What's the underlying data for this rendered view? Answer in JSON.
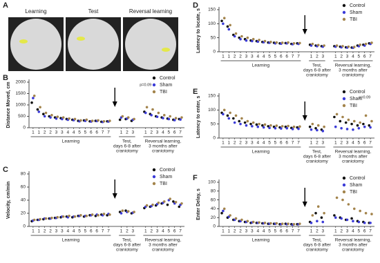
{
  "panel_labels": [
    "A",
    "B",
    "C",
    "D",
    "E",
    "F"
  ],
  "arena_titles": [
    "Learning",
    "Test",
    "Reversal learning"
  ],
  "chart_data": [
    {
      "type": "scatter",
      "y_label": "Distance Moved, cm",
      "ylim": [
        0,
        2000
      ],
      "yticks": [
        0,
        500,
        1000,
        1500,
        2000
      ],
      "annotations": [
        "p=0.09"
      ],
      "groups": [
        {
          "lines": [
            "Learning"
          ],
          "categories": [
            "1",
            "1",
            "2",
            "2",
            "3",
            "3",
            "4",
            "4",
            "5",
            "5",
            "6",
            "6",
            "7",
            "7"
          ]
        },
        {
          "lines": [
            "Test,",
            "days 6-8 after",
            "craniotomy"
          ],
          "categories": [
            "1",
            "2",
            "3"
          ]
        },
        {
          "lines": [
            "Reversal learning,",
            "3 months after",
            "craniotomy"
          ],
          "categories": [
            "1",
            "2",
            "3",
            "4",
            "5",
            "6",
            "7"
          ]
        }
      ],
      "series": [
        {
          "name": "Control",
          "color": "#111111",
          "values": [
            1100,
            800,
            600,
            500,
            450,
            420,
            380,
            350,
            300,
            320,
            280,
            300,
            260,
            280,
            350,
            380,
            300,
            700,
            600,
            500,
            450,
            400,
            350,
            380
          ]
        },
        {
          "name": "Sham",
          "color": "#3b3bd8",
          "values": [
            1300,
            700,
            500,
            450,
            400,
            380,
            350,
            330,
            280,
            300,
            270,
            290,
            250,
            270,
            450,
            400,
            350,
            650,
            550,
            480,
            420,
            380,
            330,
            360
          ]
        },
        {
          "name": "TBI",
          "color": "#a3844c",
          "values": [
            1400,
            900,
            650,
            550,
            480,
            450,
            400,
            380,
            320,
            350,
            300,
            320,
            280,
            300,
            500,
            450,
            380,
            900,
            800,
            650,
            550,
            500,
            420,
            450
          ]
        }
      ]
    },
    {
      "type": "scatter",
      "y_label": "Velocity, cm/min",
      "ylim": [
        0,
        80
      ],
      "yticks": [
        0,
        20,
        40,
        60,
        80
      ],
      "groups": [
        {
          "lines": [
            "Learning"
          ],
          "categories": [
            "1",
            "1",
            "2",
            "2",
            "3",
            "3",
            "4",
            "4",
            "5",
            "5",
            "6",
            "6",
            "7",
            "7"
          ]
        },
        {
          "lines": [
            "Test,",
            "days 6-8 after",
            "craniotomy"
          ],
          "categories": [
            "1",
            "2",
            "3"
          ]
        },
        {
          "lines": [
            "Reversal learning,",
            "3 months after",
            "craniotomy"
          ],
          "categories": [
            "1",
            "2",
            "3",
            "4",
            "5",
            "6",
            "7"
          ]
        }
      ],
      "series": [
        {
          "name": "Control",
          "color": "#111111",
          "values": [
            8,
            10,
            11,
            12,
            13,
            14,
            15,
            14,
            16,
            15,
            17,
            16,
            18,
            17,
            22,
            24,
            20,
            28,
            30,
            32,
            35,
            33,
            38,
            30
          ]
        },
        {
          "name": "Sham",
          "color": "#3b3bd8",
          "values": [
            9,
            10,
            12,
            12,
            13,
            15,
            14,
            15,
            16,
            16,
            17,
            18,
            17,
            19,
            20,
            22,
            21,
            30,
            31,
            34,
            36,
            40,
            35,
            33
          ]
        },
        {
          "name": "TBI",
          "color": "#a3844c",
          "values": [
            10,
            11,
            12,
            13,
            14,
            15,
            16,
            15,
            17,
            16,
            18,
            17,
            19,
            18,
            24,
            23,
            22,
            32,
            33,
            36,
            38,
            42,
            37,
            35
          ]
        }
      ]
    },
    {
      "type": "scatter",
      "y_label": "Latency to locate, s",
      "ylim": [
        0,
        150
      ],
      "yticks": [
        0,
        50,
        100,
        150
      ],
      "groups": [
        {
          "lines": [
            "Learning"
          ],
          "categories": [
            "1",
            "1",
            "2",
            "2",
            "3",
            "3",
            "4",
            "4",
            "5",
            "5",
            "6",
            "6",
            "7",
            "7"
          ]
        },
        {
          "lines": [
            "Test,",
            "days 6-8 after",
            "craniotomy"
          ],
          "categories": [
            "1",
            "2",
            "3"
          ]
        },
        {
          "lines": [
            "Reversal learning,",
            "3 months after",
            "craniotomy"
          ],
          "categories": [
            "1",
            "2",
            "3",
            "4",
            "5",
            "6",
            "7"
          ]
        }
      ],
      "series": [
        {
          "name": "Control",
          "color": "#111111",
          "values": [
            110,
            90,
            60,
            50,
            45,
            40,
            38,
            35,
            33,
            32,
            30,
            31,
            28,
            30,
            25,
            22,
            20,
            20,
            18,
            16,
            15,
            22,
            25,
            30
          ]
        },
        {
          "name": "Sham",
          "color": "#3b3bd8",
          "values": [
            100,
            80,
            55,
            45,
            40,
            38,
            36,
            34,
            32,
            30,
            29,
            30,
            27,
            28,
            22,
            20,
            18,
            18,
            16,
            15,
            14,
            20,
            22,
            28
          ]
        },
        {
          "name": "TBI",
          "color": "#a3844c",
          "values": [
            120,
            95,
            65,
            55,
            50,
            45,
            42,
            38,
            35,
            33,
            32,
            33,
            30,
            31,
            28,
            24,
            22,
            22,
            20,
            18,
            17,
            25,
            28,
            32
          ]
        }
      ]
    },
    {
      "type": "scatter",
      "y_label": "Latency to enter, s",
      "ylim": [
        0,
        150
      ],
      "yticks": [
        0,
        50,
        100,
        150
      ],
      "annotations": [
        "p=0.09"
      ],
      "groups": [
        {
          "lines": [
            "Learning"
          ],
          "categories": [
            "1",
            "1",
            "2",
            "2",
            "3",
            "3",
            "4",
            "4",
            "5",
            "5",
            "6",
            "6",
            "7",
            "7"
          ]
        },
        {
          "lines": [
            "Test,",
            "days 6-8 after",
            "craniotomy"
          ],
          "categories": [
            "1",
            "2",
            "3"
          ]
        },
        {
          "lines": [
            "Reversal learning,",
            "3 months after",
            "craniotomy"
          ],
          "categories": [
            "1",
            "2",
            "3",
            "4",
            "5",
            "6",
            "7"
          ]
        }
      ],
      "series": [
        {
          "name": "Control",
          "color": "#111111",
          "values": [
            90,
            80,
            70,
            60,
            55,
            50,
            48,
            45,
            42,
            40,
            38,
            40,
            36,
            38,
            40,
            35,
            30,
            75,
            60,
            55,
            50,
            45,
            50,
            45
          ]
        },
        {
          "name": "Sham",
          "color": "#3b3bd8",
          "values": [
            85,
            70,
            55,
            50,
            45,
            42,
            40,
            38,
            36,
            35,
            34,
            35,
            32,
            33,
            30,
            28,
            25,
            40,
            35,
            32,
            30,
            35,
            40,
            38
          ]
        },
        {
          "name": "TBI",
          "color": "#a3844c",
          "values": [
            100,
            90,
            80,
            70,
            60,
            55,
            50,
            48,
            45,
            44,
            42,
            43,
            40,
            41,
            50,
            45,
            40,
            85,
            75,
            65,
            60,
            55,
            80,
            60
          ]
        }
      ]
    },
    {
      "type": "scatter",
      "y_label": "Enter Delay, s",
      "ylim": [
        0,
        100
      ],
      "yticks": [
        0,
        20,
        40,
        60,
        80,
        100
      ],
      "groups": [
        {
          "lines": [
            "Learning"
          ],
          "categories": [
            "1",
            "1",
            "2",
            "2",
            "3",
            "3",
            "4",
            "4",
            "5",
            "5",
            "6",
            "6",
            "7",
            "7"
          ]
        },
        {
          "lines": [
            "Test,",
            "days 6-8 after",
            "craniotomy"
          ],
          "categories": [
            "1",
            "2",
            "3"
          ]
        },
        {
          "lines": [
            "Reversal learning,",
            "3 months after",
            "craniotomy"
          ],
          "categories": [
            "1",
            "2",
            "3",
            "4",
            "5",
            "6",
            "7"
          ]
        }
      ],
      "series": [
        {
          "name": "Control",
          "color": "#111111",
          "values": [
            30,
            20,
            15,
            12,
            10,
            8,
            8,
            7,
            6,
            6,
            5,
            6,
            5,
            5,
            10,
            30,
            20,
            25,
            20,
            15,
            18,
            12,
            10,
            8
          ]
        },
        {
          "name": "Sham",
          "color": "#3b3bd8",
          "values": [
            35,
            22,
            15,
            12,
            10,
            9,
            8,
            7,
            6,
            6,
            5,
            5,
            4,
            5,
            8,
            12,
            10,
            20,
            18,
            15,
            12,
            10,
            8,
            8
          ]
        },
        {
          "name": "TBI",
          "color": "#a3844c",
          "values": [
            40,
            25,
            18,
            15,
            12,
            10,
            9,
            8,
            7,
            7,
            6,
            6,
            5,
            6,
            25,
            45,
            30,
            65,
            60,
            50,
            40,
            35,
            30,
            28
          ]
        }
      ]
    }
  ]
}
